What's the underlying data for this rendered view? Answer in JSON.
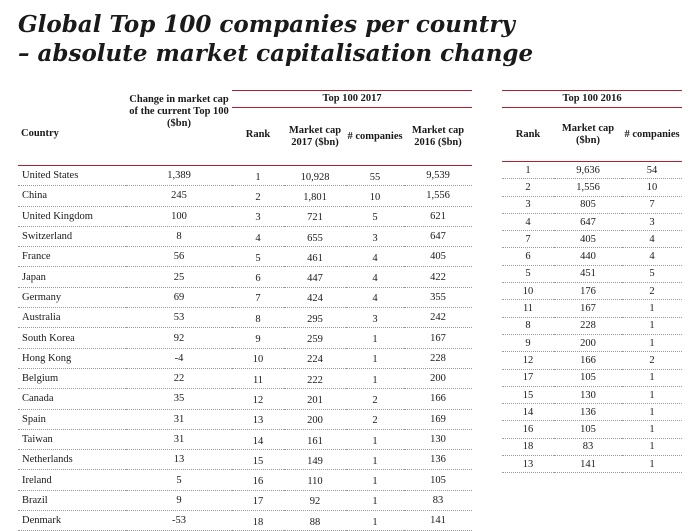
{
  "title": {
    "line1": "Global Top 100 companies per country",
    "line2": "– absolute market capitalisation change"
  },
  "headers": {
    "country": "Country",
    "change": "Change in market cap of the current Top 100 ($bn)",
    "group_2017": "Top 100 2017",
    "group_2016": "Top 100 2016",
    "rank": "Rank",
    "market_cap_2017": "Market cap 2017 ($bn)",
    "companies": "# companies",
    "market_cap_2016": "Market cap 2016 ($bn)",
    "market_cap": "Market cap ($bn)"
  },
  "rows": [
    {
      "country": "United States",
      "change": "1,389",
      "rank_2017": "1",
      "cap_2017": "10,928",
      "companies_2017": "55",
      "cap_2016_of_2017": "9,539",
      "rank_2016": "1",
      "cap_2016": "9,636",
      "companies_2016": "54"
    },
    {
      "country": "China",
      "change": "245",
      "rank_2017": "2",
      "cap_2017": "1,801",
      "companies_2017": "10",
      "cap_2016_of_2017": "1,556",
      "rank_2016": "2",
      "cap_2016": "1,556",
      "companies_2016": "10"
    },
    {
      "country": "United Kingdom",
      "change": "100",
      "rank_2017": "3",
      "cap_2017": "721",
      "companies_2017": "5",
      "cap_2016_of_2017": "621",
      "rank_2016": "3",
      "cap_2016": "805",
      "companies_2016": "7"
    },
    {
      "country": "Switzerland",
      "change": "8",
      "rank_2017": "4",
      "cap_2017": "655",
      "companies_2017": "3",
      "cap_2016_of_2017": "647",
      "rank_2016": "4",
      "cap_2016": "647",
      "companies_2016": "3"
    },
    {
      "country": "France",
      "change": "56",
      "rank_2017": "5",
      "cap_2017": "461",
      "companies_2017": "4",
      "cap_2016_of_2017": "405",
      "rank_2016": "7",
      "cap_2016": "405",
      "companies_2016": "4"
    },
    {
      "country": "Japan",
      "change": "25",
      "rank_2017": "6",
      "cap_2017": "447",
      "companies_2017": "4",
      "cap_2016_of_2017": "422",
      "rank_2016": "6",
      "cap_2016": "440",
      "companies_2016": "4"
    },
    {
      "country": "Germany",
      "change": "69",
      "rank_2017": "7",
      "cap_2017": "424",
      "companies_2017": "4",
      "cap_2016_of_2017": "355",
      "rank_2016": "5",
      "cap_2016": "451",
      "companies_2016": "5"
    },
    {
      "country": "Australia",
      "change": "53",
      "rank_2017": "8",
      "cap_2017": "295",
      "companies_2017": "3",
      "cap_2016_of_2017": "242",
      "rank_2016": "10",
      "cap_2016": "176",
      "companies_2016": "2"
    },
    {
      "country": "South Korea",
      "change": "92",
      "rank_2017": "9",
      "cap_2017": "259",
      "companies_2017": "1",
      "cap_2016_of_2017": "167",
      "rank_2016": "11",
      "cap_2016": "167",
      "companies_2016": "1"
    },
    {
      "country": "Hong Kong",
      "change": "-4",
      "rank_2017": "10",
      "cap_2017": "224",
      "companies_2017": "1",
      "cap_2016_of_2017": "228",
      "rank_2016": "8",
      "cap_2016": "228",
      "companies_2016": "1"
    },
    {
      "country": "Belgium",
      "change": "22",
      "rank_2017": "11",
      "cap_2017": "222",
      "companies_2017": "1",
      "cap_2016_of_2017": "200",
      "rank_2016": "9",
      "cap_2016": "200",
      "companies_2016": "1"
    },
    {
      "country": "Canada",
      "change": "35",
      "rank_2017": "12",
      "cap_2017": "201",
      "companies_2017": "2",
      "cap_2016_of_2017": "166",
      "rank_2016": "12",
      "cap_2016": "166",
      "companies_2016": "2"
    },
    {
      "country": "Spain",
      "change": "31",
      "rank_2017": "13",
      "cap_2017": "200",
      "companies_2017": "2",
      "cap_2016_of_2017": "169",
      "rank_2016": "17",
      "cap_2016": "105",
      "companies_2016": "1"
    },
    {
      "country": "Taiwan",
      "change": "31",
      "rank_2017": "14",
      "cap_2017": "161",
      "companies_2017": "1",
      "cap_2016_of_2017": "130",
      "rank_2016": "15",
      "cap_2016": "130",
      "companies_2016": "1"
    },
    {
      "country": "Netherlands",
      "change": "13",
      "rank_2017": "15",
      "cap_2017": "149",
      "companies_2017": "1",
      "cap_2016_of_2017": "136",
      "rank_2016": "14",
      "cap_2016": "136",
      "companies_2016": "1"
    },
    {
      "country": "Ireland",
      "change": "5",
      "rank_2017": "16",
      "cap_2017": "110",
      "companies_2017": "1",
      "cap_2016_of_2017": "105",
      "rank_2016": "16",
      "cap_2016": "105",
      "companies_2016": "1"
    },
    {
      "country": "Brazil",
      "change": "9",
      "rank_2017": "17",
      "cap_2017": "92",
      "companies_2017": "1",
      "cap_2016_of_2017": "83",
      "rank_2016": "18",
      "cap_2016": "83",
      "companies_2016": "1"
    },
    {
      "country": "Denmark",
      "change": "-53",
      "rank_2017": "18",
      "cap_2017": "88",
      "companies_2017": "1",
      "cap_2016_of_2017": "141",
      "rank_2016": "13",
      "cap_2016": "141",
      "companies_2016": "1"
    }
  ],
  "colors": {
    "accent_rule": "#b41e2d",
    "text": "#1a1a1a",
    "row_divider": "#9a9a9a"
  }
}
